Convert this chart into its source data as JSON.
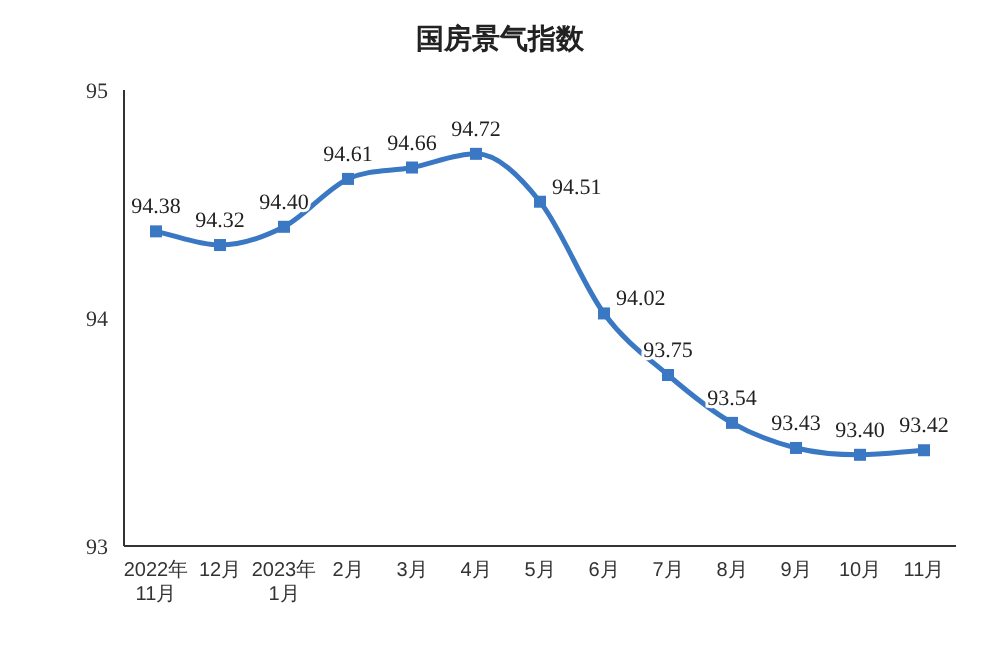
{
  "chart_data": {
    "type": "line",
    "title": "国房景气指数",
    "categories": [
      "2022年\n11月",
      "12月",
      "2023年\n1月",
      "2月",
      "3月",
      "4月",
      "5月",
      "6月",
      "7月",
      "8月",
      "9月",
      "10月",
      "11月"
    ],
    "values": [
      94.38,
      94.32,
      94.4,
      94.61,
      94.66,
      94.72,
      94.51,
      94.02,
      93.75,
      93.54,
      93.43,
      93.4,
      93.42
    ],
    "color": "#3a78c4",
    "ylim": [
      93,
      95
    ],
    "yticks": [
      93,
      94,
      95
    ],
    "value_labels": [
      "94.38",
      "94.32",
      "94.40",
      "94.61",
      "94.66",
      "94.72",
      "94.51",
      "94.02",
      "93.75",
      "93.54",
      "93.43",
      "93.40",
      "93.42"
    ],
    "marker": "square",
    "line_style": "solid"
  }
}
